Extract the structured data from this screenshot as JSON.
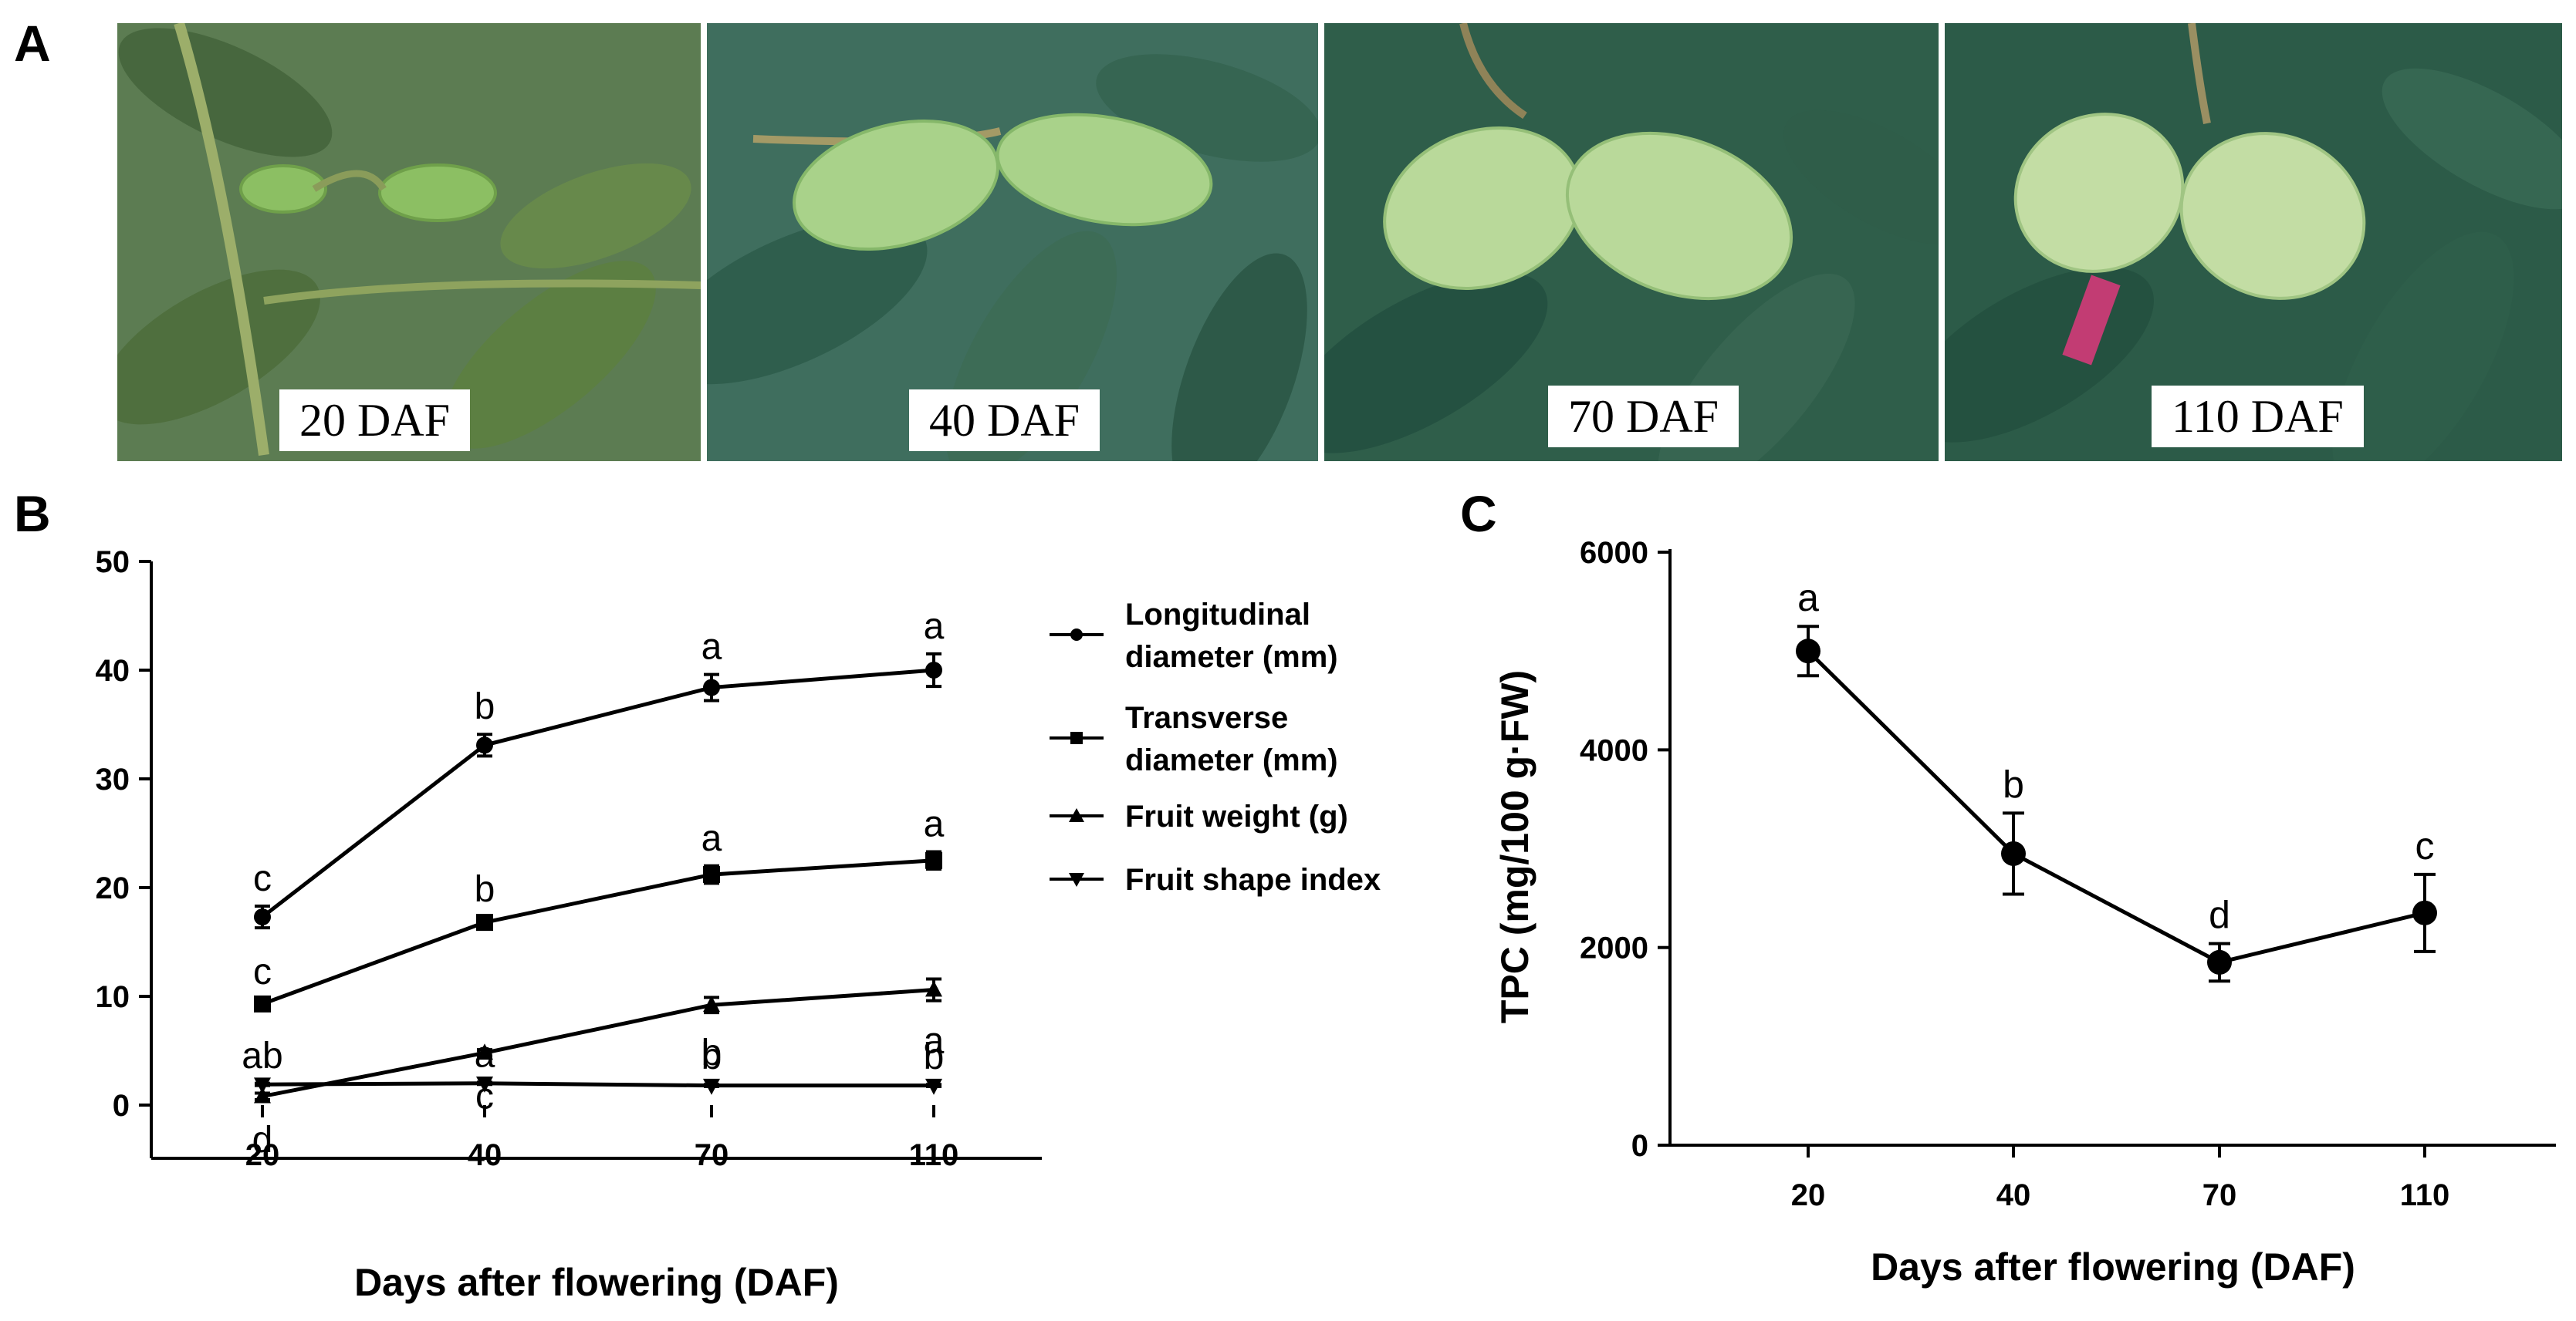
{
  "panels": {
    "a": "A",
    "b": "B",
    "c": "C"
  },
  "photos": [
    {
      "label": "20 DAF",
      "bg": "#5c7c52",
      "fruit": "#8cbf63",
      "fruit_dark": "#6fa04a"
    },
    {
      "label": "40 DAF",
      "bg": "#3f6e5e",
      "fruit": "#a9d28a",
      "fruit_dark": "#86b86a"
    },
    {
      "label": "70 DAF",
      "bg": "#2f5e4a",
      "fruit": "#b9d99a",
      "fruit_dark": "#95bf78"
    },
    {
      "label": "110 DAF",
      "bg": "#2c5b48",
      "fruit": "#c3dda4",
      "fruit_dark": "#a0c583"
    }
  ],
  "legend": {
    "longitudinal_1": "Longitudinal",
    "longitudinal_2": "diameter (mm)",
    "transverse_1": "Transverse",
    "transverse_2": "diameter (mm)",
    "weight": "Fruit weight (g)",
    "shape": "Fruit shape index"
  },
  "chart_data": [
    {
      "type": "line",
      "panel": "B",
      "categories": [
        "20",
        "40",
        "70",
        "110"
      ],
      "xlabel": "Days after flowering (DAF)",
      "ylabel": "",
      "ylim": [
        0,
        50
      ],
      "yticks": [
        "0",
        "10",
        "20",
        "30",
        "40",
        "50"
      ],
      "series": [
        {
          "name": "Longitudinal diameter (mm)",
          "marker": "circle",
          "values": [
            17.3,
            33.1,
            38.4,
            40.0
          ],
          "errors": [
            1.0,
            1.0,
            1.2,
            1.5
          ],
          "letters": [
            "c",
            "b",
            "a",
            "a"
          ]
        },
        {
          "name": "Transverse diameter (mm)",
          "marker": "square",
          "values": [
            9.3,
            16.8,
            21.2,
            22.5
          ],
          "errors": [
            0.4,
            0.5,
            0.8,
            0.8
          ],
          "letters": [
            "c",
            "b",
            "a",
            "a"
          ]
        },
        {
          "name": "Fruit weight (g)",
          "marker": "triangle",
          "values": [
            0.8,
            4.8,
            9.2,
            10.6
          ],
          "errors": [
            0.3,
            0.3,
            0.7,
            1.0
          ],
          "letters": [
            "d",
            "c",
            "b",
            "a"
          ]
        },
        {
          "name": "Fruit shape index",
          "marker": "triangle-down",
          "values": [
            1.9,
            2.0,
            1.8,
            1.8
          ],
          "errors": [
            0.1,
            0.1,
            0.1,
            0.1
          ],
          "letters": [
            "ab",
            "a",
            "b",
            "b"
          ]
        }
      ]
    },
    {
      "type": "line",
      "panel": "C",
      "categories": [
        "20",
        "40",
        "70",
        "110"
      ],
      "xlabel": "Days after flowering (DAF)",
      "ylabel": "TPC (mg/100 g·FW)",
      "ylim": [
        0,
        6500
      ],
      "yticks": [
        "0",
        "2000",
        "4000",
        "6000"
      ],
      "series": [
        {
          "name": "TPC",
          "marker": "circle",
          "values": [
            5000,
            2950,
            1850,
            2350
          ],
          "errors": [
            250,
            410,
            190,
            390
          ],
          "letters": [
            "a",
            "b",
            "d",
            "c"
          ]
        }
      ]
    }
  ]
}
